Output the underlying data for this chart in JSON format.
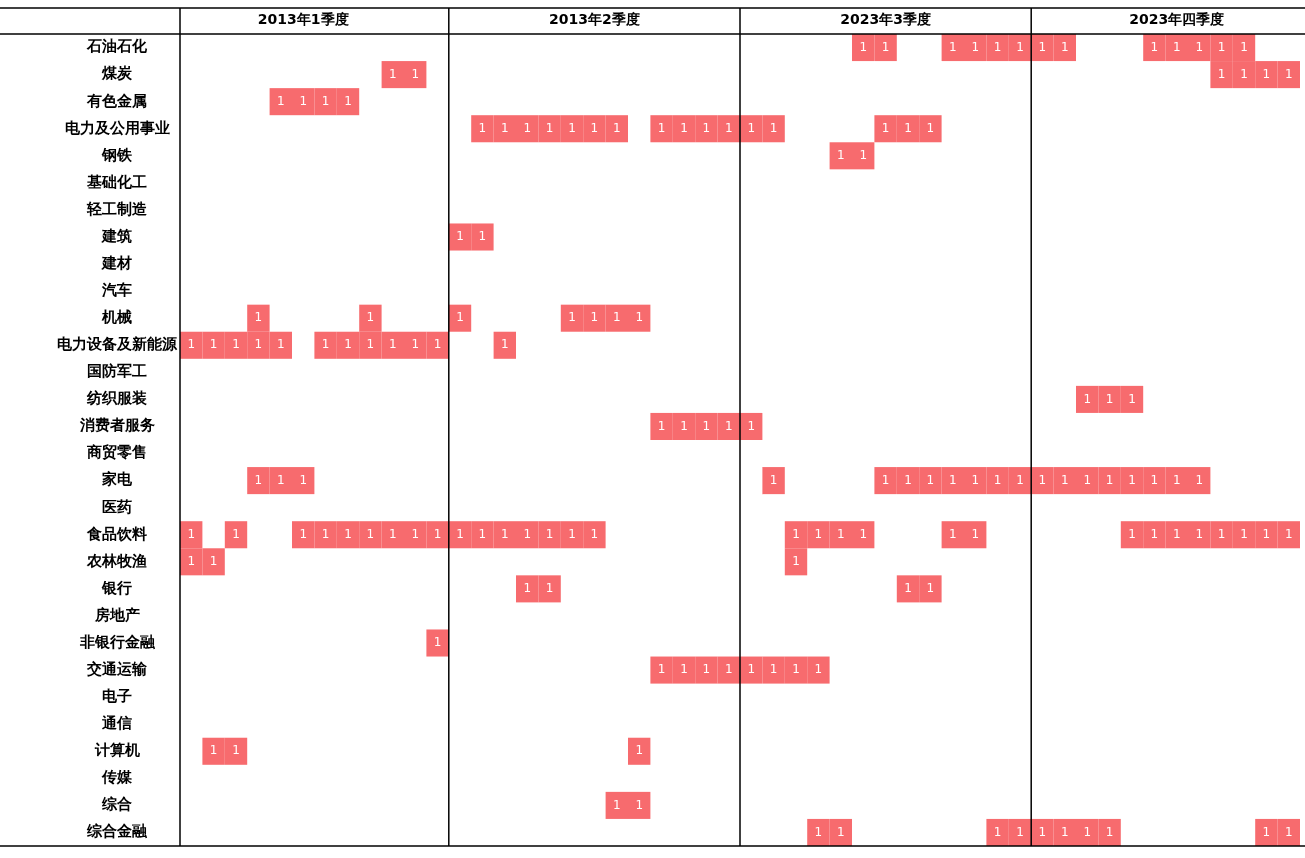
{
  "chart_data": {
    "type": "heatmap",
    "categories": [
      null,
      null,
      null,
      null,
      null,
      "2013年1季度",
      null,
      null,
      null,
      null,
      null,
      null,
      null,
      null,
      null,
      null,
      null,
      null,
      "2013年2季度",
      null,
      null,
      null,
      null,
      null,
      null,
      null,
      null,
      null,
      null,
      null,
      null,
      "2023年3季度",
      null,
      null,
      null,
      null,
      null,
      null,
      null,
      null,
      null,
      null,
      null,
      null,
      "2023年四季度",
      null,
      null,
      null,
      null,
      null
    ],
    "y_categories": [
      "石油石化",
      "煤炭",
      "有色金属",
      "电力及公用事业",
      "钢铁",
      "基础化工",
      "轻工制造",
      "建筑",
      "建材",
      "汽车",
      "机械",
      "电力设备及新能源",
      "国防军工",
      "纺织服装",
      "消费者服务",
      "商贸零售",
      "家电",
      "医药",
      "食品饮料",
      "农林牧渔",
      "银行",
      "房地产",
      "非银行金融",
      "交通运输",
      "电子",
      "通信",
      "计算机",
      "传媒",
      "综合",
      "综合金融"
    ],
    "color": "#f76b6e",
    "grid": "x",
    "data_labels": true,
    "cells": [
      [
        null,
        null,
        null,
        null,
        null,
        null,
        null,
        null,
        null,
        null,
        null,
        null,
        null,
        null,
        null,
        null,
        null,
        null,
        null,
        null,
        null,
        null,
        null,
        null,
        null,
        null,
        null,
        null,
        null,
        null,
        1,
        1,
        null,
        null,
        1,
        1,
        1,
        1,
        1,
        1,
        null,
        null,
        null,
        1,
        1,
        1,
        1,
        1,
        null,
        null
      ],
      [
        null,
        null,
        null,
        null,
        null,
        null,
        null,
        null,
        null,
        1,
        1,
        null,
        null,
        null,
        null,
        null,
        null,
        null,
        null,
        null,
        null,
        null,
        null,
        null,
        null,
        null,
        null,
        null,
        null,
        null,
        null,
        null,
        null,
        null,
        null,
        null,
        null,
        null,
        null,
        null,
        null,
        null,
        null,
        null,
        null,
        null,
        1,
        1,
        1,
        1
      ],
      [
        null,
        null,
        null,
        null,
        1,
        1,
        1,
        1,
        null,
        null,
        null,
        null,
        null,
        null,
        null,
        null,
        null,
        null,
        null,
        null,
        null,
        null,
        null,
        null,
        null,
        null,
        null,
        null,
        null,
        null,
        null,
        null,
        null,
        null,
        null,
        null,
        null,
        null,
        null,
        null,
        null,
        null,
        null,
        null,
        null,
        null,
        null,
        null,
        null,
        null
      ],
      [
        null,
        null,
        null,
        null,
        null,
        null,
        null,
        null,
        null,
        null,
        null,
        null,
        null,
        1,
        1,
        1,
        1,
        1,
        1,
        1,
        null,
        1,
        1,
        1,
        1,
        1,
        1,
        null,
        null,
        null,
        null,
        1,
        1,
        1,
        null,
        null,
        null,
        null,
        null,
        null,
        null,
        null,
        null,
        null,
        null,
        null,
        null,
        null,
        null,
        null
      ],
      [
        null,
        null,
        null,
        null,
        null,
        null,
        null,
        null,
        null,
        null,
        null,
        null,
        null,
        null,
        null,
        null,
        null,
        null,
        null,
        null,
        null,
        null,
        null,
        null,
        null,
        null,
        null,
        null,
        null,
        1,
        1,
        null,
        null,
        null,
        null,
        null,
        null,
        null,
        null,
        null,
        null,
        null,
        null,
        null,
        null,
        null,
        null,
        null,
        null,
        null
      ],
      [
        null,
        null,
        null,
        null,
        null,
        null,
        null,
        null,
        null,
        null,
        null,
        null,
        null,
        null,
        null,
        null,
        null,
        null,
        null,
        null,
        null,
        null,
        null,
        null,
        null,
        null,
        null,
        null,
        null,
        null,
        null,
        null,
        null,
        null,
        null,
        null,
        null,
        null,
        null,
        null,
        null,
        null,
        null,
        null,
        null,
        null,
        null,
        null,
        null,
        null
      ],
      [
        null,
        null,
        null,
        null,
        null,
        null,
        null,
        null,
        null,
        null,
        null,
        null,
        null,
        null,
        null,
        null,
        null,
        null,
        null,
        null,
        null,
        null,
        null,
        null,
        null,
        null,
        null,
        null,
        null,
        null,
        null,
        null,
        null,
        null,
        null,
        null,
        null,
        null,
        null,
        null,
        null,
        null,
        null,
        null,
        null,
        null,
        null,
        null,
        null,
        null
      ],
      [
        null,
        null,
        null,
        null,
        null,
        null,
        null,
        null,
        null,
        null,
        null,
        null,
        1,
        1,
        null,
        null,
        null,
        null,
        null,
        null,
        null,
        null,
        null,
        null,
        null,
        null,
        null,
        null,
        null,
        null,
        null,
        null,
        null,
        null,
        null,
        null,
        null,
        null,
        null,
        null,
        null,
        null,
        null,
        null,
        null,
        null,
        null,
        null,
        null,
        null
      ],
      [
        null,
        null,
        null,
        null,
        null,
        null,
        null,
        null,
        null,
        null,
        null,
        null,
        null,
        null,
        null,
        null,
        null,
        null,
        null,
        null,
        null,
        null,
        null,
        null,
        null,
        null,
        null,
        null,
        null,
        null,
        null,
        null,
        null,
        null,
        null,
        null,
        null,
        null,
        null,
        null,
        null,
        null,
        null,
        null,
        null,
        null,
        null,
        null,
        null,
        null
      ],
      [
        null,
        null,
        null,
        null,
        null,
        null,
        null,
        null,
        null,
        null,
        null,
        null,
        null,
        null,
        null,
        null,
        null,
        null,
        null,
        null,
        null,
        null,
        null,
        null,
        null,
        null,
        null,
        null,
        null,
        null,
        null,
        null,
        null,
        null,
        null,
        null,
        null,
        null,
        null,
        null,
        null,
        null,
        null,
        null,
        null,
        null,
        null,
        null,
        null,
        null
      ],
      [
        null,
        null,
        null,
        1,
        null,
        null,
        null,
        null,
        1,
        null,
        null,
        null,
        1,
        null,
        null,
        null,
        null,
        1,
        1,
        1,
        1,
        null,
        null,
        null,
        null,
        null,
        null,
        null,
        null,
        null,
        null,
        null,
        null,
        null,
        null,
        null,
        null,
        null,
        null,
        null,
        null,
        null,
        null,
        null,
        null,
        null,
        null,
        null,
        null,
        null
      ],
      [
        1,
        1,
        1,
        1,
        1,
        null,
        1,
        1,
        1,
        1,
        1,
        1,
        null,
        null,
        1,
        null,
        null,
        null,
        null,
        null,
        null,
        null,
        null,
        null,
        null,
        null,
        null,
        null,
        null,
        null,
        null,
        null,
        null,
        null,
        null,
        null,
        null,
        null,
        null,
        null,
        null,
        null,
        null,
        null,
        null,
        null,
        null,
        null,
        null,
        null
      ],
      [
        null,
        null,
        null,
        null,
        null,
        null,
        null,
        null,
        null,
        null,
        null,
        null,
        null,
        null,
        null,
        null,
        null,
        null,
        null,
        null,
        null,
        null,
        null,
        null,
        null,
        null,
        null,
        null,
        null,
        null,
        null,
        null,
        null,
        null,
        null,
        null,
        null,
        null,
        null,
        null,
        null,
        null,
        null,
        null,
        null,
        null,
        null,
        null,
        null,
        null
      ],
      [
        null,
        null,
        null,
        null,
        null,
        null,
        null,
        null,
        null,
        null,
        null,
        null,
        null,
        null,
        null,
        null,
        null,
        null,
        null,
        null,
        null,
        null,
        null,
        null,
        null,
        null,
        null,
        null,
        null,
        null,
        null,
        null,
        null,
        null,
        null,
        null,
        null,
        null,
        null,
        null,
        1,
        1,
        1,
        null,
        null,
        null,
        null,
        null,
        null,
        null
      ],
      [
        null,
        null,
        null,
        null,
        null,
        null,
        null,
        null,
        null,
        null,
        null,
        null,
        null,
        null,
        null,
        null,
        null,
        null,
        null,
        null,
        null,
        1,
        1,
        1,
        1,
        1,
        null,
        null,
        null,
        null,
        null,
        null,
        null,
        null,
        null,
        null,
        null,
        null,
        null,
        null,
        null,
        null,
        null,
        null,
        null,
        null,
        null,
        null,
        null,
        null
      ],
      [
        null,
        null,
        null,
        null,
        null,
        null,
        null,
        null,
        null,
        null,
        null,
        null,
        null,
        null,
        null,
        null,
        null,
        null,
        null,
        null,
        null,
        null,
        null,
        null,
        null,
        null,
        null,
        null,
        null,
        null,
        null,
        null,
        null,
        null,
        null,
        null,
        null,
        null,
        null,
        null,
        null,
        null,
        null,
        null,
        null,
        null,
        null,
        null,
        null,
        null
      ],
      [
        null,
        null,
        null,
        1,
        1,
        1,
        null,
        null,
        null,
        null,
        null,
        null,
        null,
        null,
        null,
        null,
        null,
        null,
        null,
        null,
        null,
        null,
        null,
        null,
        null,
        null,
        1,
        null,
        null,
        null,
        null,
        1,
        1,
        1,
        1,
        1,
        1,
        1,
        1,
        1,
        1,
        1,
        1,
        1,
        1,
        1,
        null,
        null,
        null,
        null
      ],
      [
        null,
        null,
        null,
        null,
        null,
        null,
        null,
        null,
        null,
        null,
        null,
        null,
        null,
        null,
        null,
        null,
        null,
        null,
        null,
        null,
        null,
        null,
        null,
        null,
        null,
        null,
        null,
        null,
        null,
        null,
        null,
        null,
        null,
        null,
        null,
        null,
        null,
        null,
        null,
        null,
        null,
        null,
        null,
        null,
        null,
        null,
        null,
        null,
        null,
        null
      ],
      [
        1,
        null,
        1,
        null,
        null,
        1,
        1,
        1,
        1,
        1,
        1,
        1,
        1,
        1,
        1,
        1,
        1,
        1,
        1,
        null,
        null,
        null,
        null,
        null,
        null,
        null,
        null,
        1,
        1,
        1,
        1,
        null,
        null,
        null,
        1,
        1,
        null,
        null,
        null,
        null,
        null,
        null,
        1,
        1,
        1,
        1,
        1,
        1,
        1,
        1
      ],
      [
        1,
        1,
        null,
        null,
        null,
        null,
        null,
        null,
        null,
        null,
        null,
        null,
        null,
        null,
        null,
        null,
        null,
        null,
        null,
        null,
        null,
        null,
        null,
        null,
        null,
        null,
        null,
        1,
        null,
        null,
        null,
        null,
        null,
        null,
        null,
        null,
        null,
        null,
        null,
        null,
        null,
        null,
        null,
        null,
        null,
        null,
        null,
        null,
        null,
        null
      ],
      [
        null,
        null,
        null,
        null,
        null,
        null,
        null,
        null,
        null,
        null,
        null,
        null,
        null,
        null,
        null,
        1,
        1,
        null,
        null,
        null,
        null,
        null,
        null,
        null,
        null,
        null,
        null,
        null,
        null,
        null,
        null,
        null,
        1,
        1,
        null,
        null,
        null,
        null,
        null,
        null,
        null,
        null,
        null,
        null,
        null,
        null,
        null,
        null,
        null,
        null
      ],
      [
        null,
        null,
        null,
        null,
        null,
        null,
        null,
        null,
        null,
        null,
        null,
        null,
        null,
        null,
        null,
        null,
        null,
        null,
        null,
        null,
        null,
        null,
        null,
        null,
        null,
        null,
        null,
        null,
        null,
        null,
        null,
        null,
        null,
        null,
        null,
        null,
        null,
        null,
        null,
        null,
        null,
        null,
        null,
        null,
        null,
        null,
        null,
        null,
        null,
        null
      ],
      [
        null,
        null,
        null,
        null,
        null,
        null,
        null,
        null,
        null,
        null,
        null,
        1,
        null,
        null,
        null,
        null,
        null,
        null,
        null,
        null,
        null,
        null,
        null,
        null,
        null,
        null,
        null,
        null,
        null,
        null,
        null,
        null,
        null,
        null,
        null,
        null,
        null,
        null,
        null,
        null,
        null,
        null,
        null,
        null,
        null,
        null,
        null,
        null,
        null,
        null
      ],
      [
        null,
        null,
        null,
        null,
        null,
        null,
        null,
        null,
        null,
        null,
        null,
        null,
        null,
        null,
        null,
        null,
        null,
        null,
        null,
        null,
        null,
        1,
        1,
        1,
        1,
        1,
        1,
        1,
        1,
        null,
        null,
        null,
        null,
        null,
        null,
        null,
        null,
        null,
        null,
        null,
        null,
        null,
        null,
        null,
        null,
        null,
        null,
        null,
        null,
        null
      ],
      [
        null,
        null,
        null,
        null,
        null,
        null,
        null,
        null,
        null,
        null,
        null,
        null,
        null,
        null,
        null,
        null,
        null,
        null,
        null,
        null,
        null,
        null,
        null,
        null,
        null,
        null,
        null,
        null,
        null,
        null,
        null,
        null,
        null,
        null,
        null,
        null,
        null,
        null,
        null,
        null,
        null,
        null,
        null,
        null,
        null,
        null,
        null,
        null,
        null,
        null
      ],
      [
        null,
        null,
        null,
        null,
        null,
        null,
        null,
        null,
        null,
        null,
        null,
        null,
        null,
        null,
        null,
        null,
        null,
        null,
        null,
        null,
        null,
        null,
        null,
        null,
        null,
        null,
        null,
        null,
        null,
        null,
        null,
        null,
        null,
        null,
        null,
        null,
        null,
        null,
        null,
        null,
        null,
        null,
        null,
        null,
        null,
        null,
        null,
        null,
        null,
        null
      ],
      [
        null,
        1,
        1,
        null,
        null,
        null,
        null,
        null,
        null,
        null,
        null,
        null,
        null,
        null,
        null,
        null,
        null,
        null,
        null,
        null,
        1,
        null,
        null,
        null,
        null,
        null,
        null,
        null,
        null,
        null,
        null,
        null,
        null,
        null,
        null,
        null,
        null,
        null,
        null,
        null,
        null,
        null,
        null,
        null,
        null,
        null,
        null,
        null,
        null,
        null
      ],
      [
        null,
        null,
        null,
        null,
        null,
        null,
        null,
        null,
        null,
        null,
        null,
        null,
        null,
        null,
        null,
        null,
        null,
        null,
        null,
        null,
        null,
        null,
        null,
        null,
        null,
        null,
        null,
        null,
        null,
        null,
        null,
        null,
        null,
        null,
        null,
        null,
        null,
        null,
        null,
        null,
        null,
        null,
        null,
        null,
        null,
        null,
        null,
        null,
        null,
        null
      ],
      [
        null,
        null,
        null,
        null,
        null,
        null,
        null,
        null,
        null,
        null,
        null,
        null,
        null,
        null,
        null,
        null,
        null,
        null,
        null,
        1,
        1,
        null,
        null,
        null,
        null,
        null,
        null,
        null,
        null,
        null,
        null,
        null,
        null,
        null,
        null,
        null,
        null,
        null,
        null,
        null,
        null,
        null,
        null,
        null,
        null,
        null,
        null,
        null,
        null,
        null
      ],
      [
        null,
        null,
        null,
        null,
        null,
        null,
        null,
        null,
        null,
        null,
        null,
        null,
        null,
        null,
        null,
        null,
        null,
        null,
        null,
        null,
        null,
        null,
        null,
        null,
        null,
        null,
        null,
        null,
        1,
        1,
        null,
        null,
        null,
        null,
        null,
        null,
        1,
        1,
        1,
        1,
        1,
        1,
        null,
        null,
        null,
        null,
        null,
        null,
        1,
        1
      ]
    ]
  }
}
